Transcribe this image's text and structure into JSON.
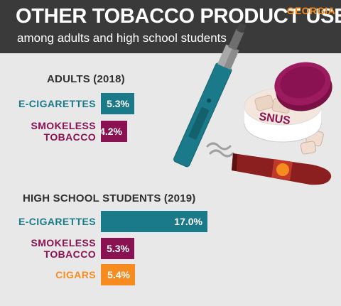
{
  "header": {
    "title": "OTHER TOBACCO PRODUCT USE",
    "subtitle": "among adults and high school students",
    "state": "GEORGIA"
  },
  "illustration": {
    "snus_label": "SNUS",
    "icons": [
      "e-cigarette-icon",
      "snus-tin-icon",
      "cigar-icon"
    ]
  },
  "colors": {
    "header_bg": "#3a3a3a",
    "background": "#e8e8e8",
    "teal": "#1a7a8a",
    "maroon": "#8a1252",
    "orange": "#f68b1f",
    "cigar": "#8b1e1e"
  },
  "chart_data": [
    {
      "type": "bar",
      "orientation": "horizontal",
      "title": "ADULTS (2018)",
      "categories": [
        "E-CIGARETTES",
        "SMOKELESS\nTOBACCO"
      ],
      "values": [
        5.3,
        4.2
      ],
      "value_labels": [
        "5.3%",
        "4.2%"
      ],
      "colors": [
        "#1a7a8a",
        "#8a1252"
      ]
    },
    {
      "type": "bar",
      "orientation": "horizontal",
      "title": "HIGH SCHOOL STUDENTS (2019)",
      "categories": [
        "E-CIGARETTES",
        "SMOKELESS\nTOBACCO",
        "CIGARS"
      ],
      "values": [
        17.0,
        5.3,
        5.4
      ],
      "value_labels": [
        "17.0%",
        "5.3%",
        "5.4%"
      ],
      "colors": [
        "#1a7a8a",
        "#8a1252",
        "#f68b1f"
      ]
    }
  ]
}
